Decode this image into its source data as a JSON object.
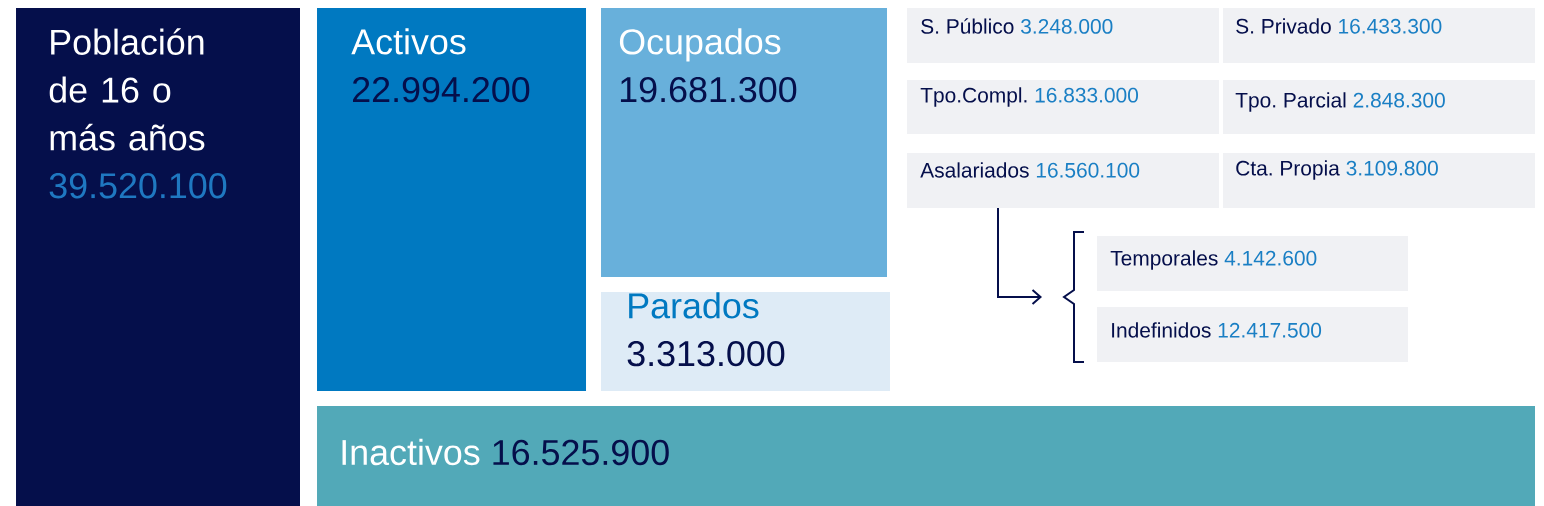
{
  "chart_data": {
    "type": "other",
    "categories": [
      "Población de 16 o más años",
      "Activos",
      "Ocupados",
      "Parados",
      "Inactivos",
      "S. Público",
      "S. Privado",
      "Tpo.Compl.",
      "Tpo. Parcial",
      "Asalariados",
      "Cta. Propia",
      "Temporales",
      "Indefinidos"
    ],
    "values": [
      39520100,
      22994200,
      19681300,
      3313000,
      16525900,
      3248000,
      16433300,
      16833000,
      2848300,
      16560100,
      3109800,
      4142600,
      12417500
    ],
    "value_labels": [
      "39.520.100",
      "22.994.200",
      "19.681.300",
      "3.313.000",
      "16.525.900",
      "3.248.000",
      "16.433.300",
      "16.833.000",
      "2.848.300",
      "16.560.100",
      "3.109.800",
      "4.142.600",
      "12.417.500"
    ],
    "colors": [
      "#050f4b",
      "#0079c1",
      "#68b0db",
      "#deebf6",
      "#52a9b8",
      "#f0f1f4",
      "#f0f1f4",
      "#f0f1f4",
      "#f0f1f4",
      "#f0f1f4",
      "#f0f1f4",
      "#f0f1f4",
      "#f0f1f4"
    ]
  }
}
